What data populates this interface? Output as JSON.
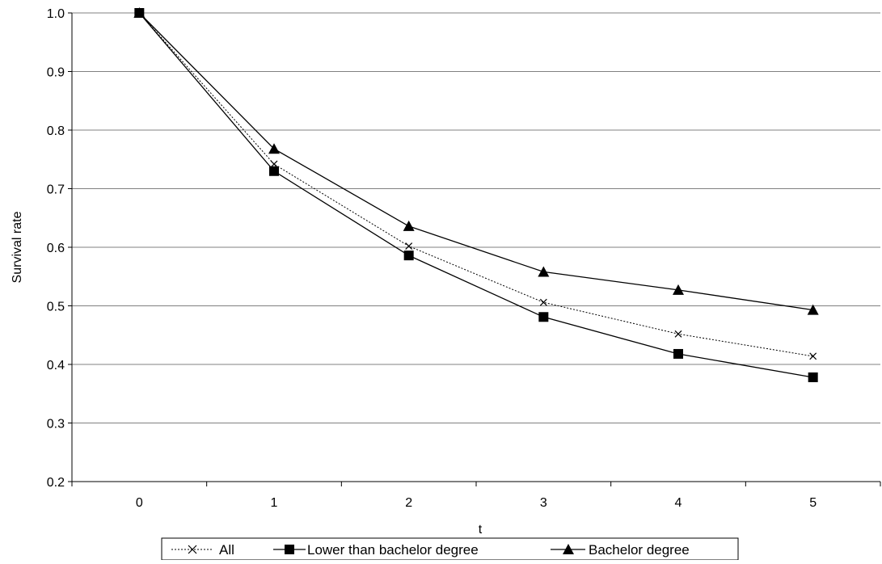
{
  "chart_data": {
    "type": "line",
    "title": "",
    "xlabel": "t",
    "ylabel": "Survival rate",
    "categories": [
      "0",
      "1",
      "2",
      "3",
      "4",
      "5"
    ],
    "x": [
      0,
      1,
      2,
      3,
      4,
      5
    ],
    "ylim": [
      0.2,
      1.0
    ],
    "yticks": [
      "0.2",
      "0.3",
      "0.4",
      "0.5",
      "0.6",
      "0.7",
      "0.8",
      "0.9",
      "1.0"
    ],
    "grid": "horizontal",
    "legend_position": "bottom",
    "series": [
      {
        "name": "All",
        "marker": "x",
        "line": "dotted",
        "values": [
          1.0,
          0.742,
          0.602,
          0.506,
          0.452,
          0.414
        ]
      },
      {
        "name": "Lower than bachelor degree",
        "marker": "square",
        "line": "solid",
        "values": [
          1.0,
          0.73,
          0.586,
          0.481,
          0.418,
          0.378
        ]
      },
      {
        "name": "Bachelor degree",
        "marker": "triangle",
        "line": "solid",
        "values": [
          1.0,
          0.768,
          0.636,
          0.558,
          0.527,
          0.493
        ]
      }
    ],
    "colors": {
      "line": "#000000",
      "grid": "#808080"
    }
  }
}
